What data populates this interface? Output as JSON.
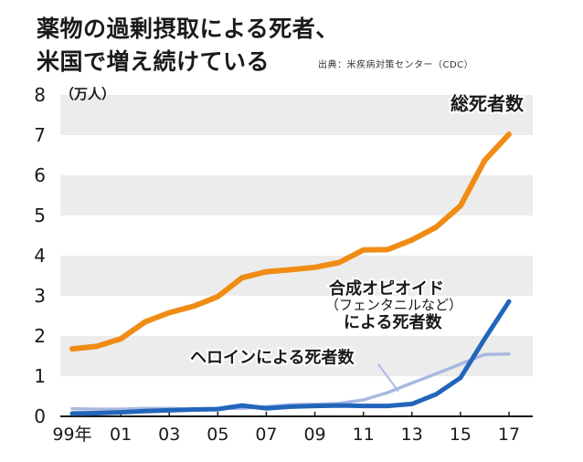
{
  "title_line1": "薬物の過剰摂取による死者、",
  "title_line2": "米国で増え続けている",
  "source": "出典：米疾病対策センター（CDC）",
  "colors": {
    "total": "#f08c14",
    "synthetic": "#2266bb",
    "heroin": "#a8b8e0",
    "band": "#ececec"
  },
  "chart_data": {
    "type": "line",
    "unit_label": "（万人）",
    "ylim": [
      0,
      8
    ],
    "y_ticks": [
      "0",
      "1",
      "2",
      "3",
      "4",
      "5",
      "6",
      "7",
      "8"
    ],
    "x": [
      1999,
      2000,
      2001,
      2002,
      2003,
      2004,
      2005,
      2006,
      2007,
      2008,
      2009,
      2010,
      2011,
      2012,
      2013,
      2014,
      2015,
      2016,
      2017
    ],
    "x_tick_labels": [
      {
        "year": 1999,
        "label": "99年"
      },
      {
        "year": 2001,
        "label": "01"
      },
      {
        "year": 2003,
        "label": "03"
      },
      {
        "year": 2005,
        "label": "05"
      },
      {
        "year": 2007,
        "label": "07"
      },
      {
        "year": 2009,
        "label": "09"
      },
      {
        "year": 2011,
        "label": "11"
      },
      {
        "year": 2013,
        "label": "13"
      },
      {
        "year": 2015,
        "label": "15"
      },
      {
        "year": 2017,
        "label": "17"
      }
    ],
    "series": [
      {
        "key": "total",
        "labels": [
          "総死者数"
        ],
        "values": [
          1.68,
          1.74,
          1.93,
          2.35,
          2.58,
          2.74,
          2.98,
          3.45,
          3.6,
          3.65,
          3.71,
          3.83,
          4.14,
          4.15,
          4.39,
          4.71,
          5.24,
          6.37,
          7.02
        ]
      },
      {
        "key": "synthetic",
        "labels": [
          "合成オピオイド",
          "（フェンタニルなど）",
          "による死者数"
        ],
        "values": [
          0.07,
          0.08,
          0.1,
          0.13,
          0.15,
          0.17,
          0.18,
          0.27,
          0.2,
          0.24,
          0.26,
          0.27,
          0.26,
          0.26,
          0.31,
          0.55,
          0.96,
          1.93,
          2.86
        ]
      },
      {
        "key": "heroin",
        "labels": [
          "ヘロインによる死者数"
        ],
        "values": [
          0.19,
          0.18,
          0.18,
          0.2,
          0.2,
          0.18,
          0.2,
          0.2,
          0.24,
          0.29,
          0.3,
          0.32,
          0.41,
          0.59,
          0.83,
          1.06,
          1.3,
          1.54,
          1.55
        ]
      }
    ]
  }
}
